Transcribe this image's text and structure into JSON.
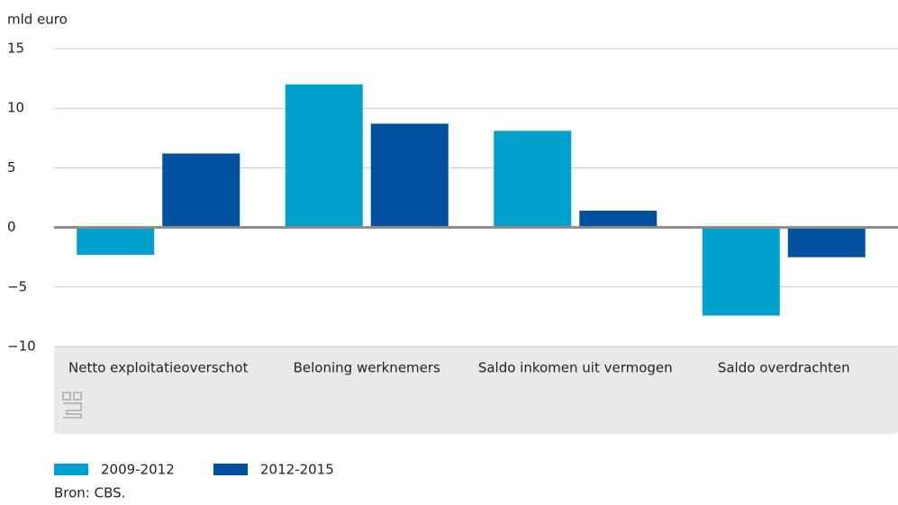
{
  "chart_data": {
    "type": "bar",
    "y_label": "mld euro",
    "categories": [
      "Netto exploitatieoverschot",
      "Beloning werknemers",
      "Saldo inkomen uit vermogen",
      "Saldo overdrachten"
    ],
    "series": [
      {
        "name": "2009-2012",
        "color": "#00a1cd",
        "values": [
          -2.3,
          12.0,
          8.1,
          -7.4
        ]
      },
      {
        "name": "2012-2015",
        "color": "#0050a0",
        "values": [
          6.2,
          8.7,
          1.4,
          -2.5
        ]
      }
    ],
    "ylim": [
      -10,
      15
    ],
    "yticks": [
      {
        "value": -10,
        "label": "−10"
      },
      {
        "value": -5,
        "label": "−5"
      },
      0,
      5,
      10,
      15
    ],
    "grid": true,
    "source": "Bron: CBS."
  }
}
